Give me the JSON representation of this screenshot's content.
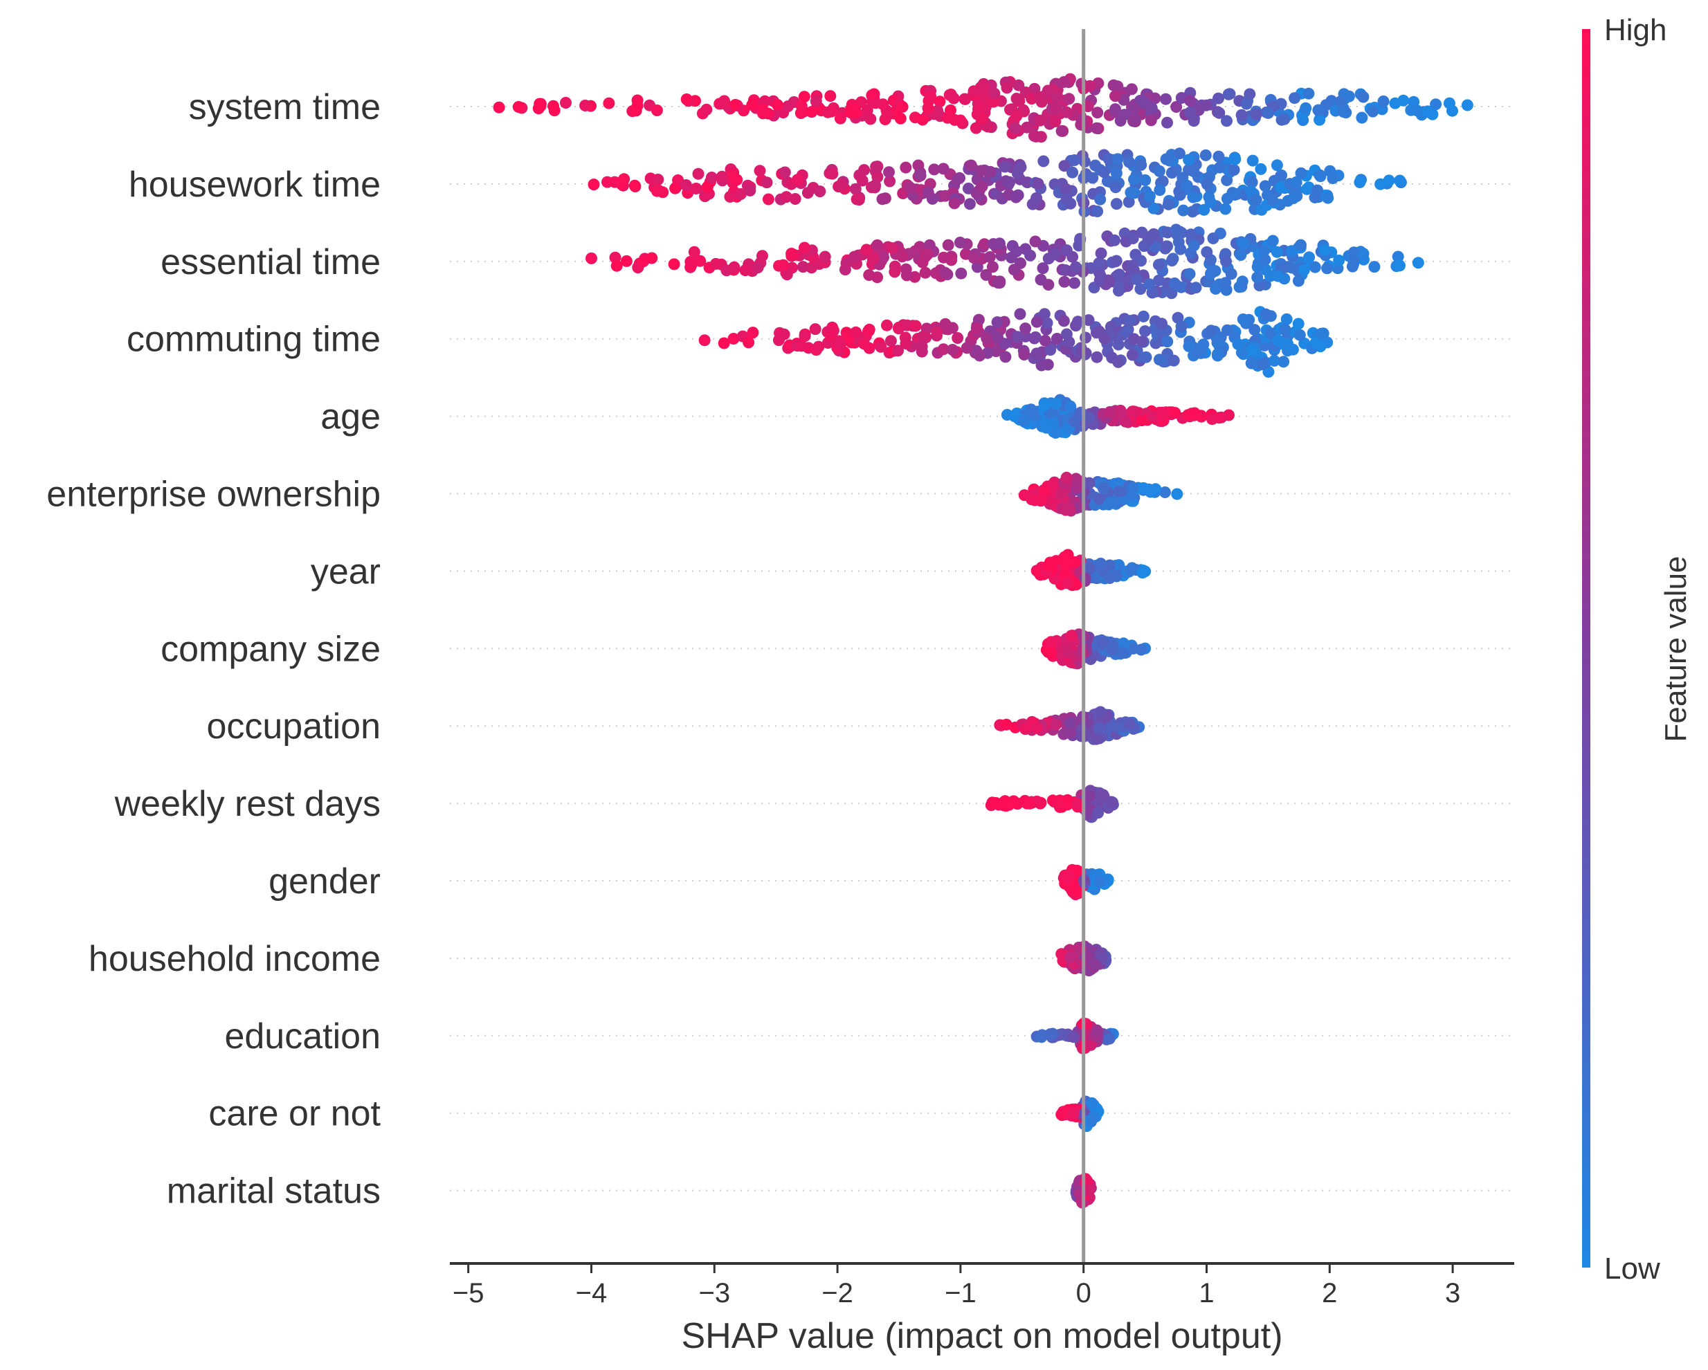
{
  "chart_data": {
    "type": "scatter",
    "subtype": "shap-beeswarm",
    "xlabel": "SHAP value (impact on model output)",
    "xlim": [
      -5.15,
      3.5
    ],
    "xticks": [
      -5,
      -4,
      -3,
      -2,
      -1,
      0,
      1,
      2,
      3
    ],
    "xtick_labels": [
      "−5",
      "−4",
      "−3",
      "−2",
      "−1",
      "0",
      "1",
      "2",
      "3"
    ],
    "zero_line": 0,
    "colorbar": {
      "title": "Feature value",
      "high_label": "High",
      "low_label": "Low",
      "high_color": "#ff0d57",
      "mid_color": "#7f3fa0",
      "low_color": "#1e88e5"
    },
    "features": [
      {
        "name": "system time",
        "min": -4.75,
        "max": 3.12,
        "spread": 1.0,
        "seed": 11,
        "dots": 340,
        "profile": [
          [
            -4.75,
            0.06
          ],
          [
            -3.5,
            0.22
          ],
          [
            -2.5,
            0.3
          ],
          [
            -1.5,
            0.42
          ],
          [
            -0.8,
            0.7
          ],
          [
            -0.2,
            1.0
          ],
          [
            0.5,
            0.5
          ],
          [
            1.5,
            0.42
          ],
          [
            2.5,
            0.38
          ],
          [
            3.12,
            0.15
          ]
        ],
        "colorstops": [
          [
            -4.75,
            1.0
          ],
          [
            -1.0,
            0.9
          ],
          [
            0.0,
            0.7
          ],
          [
            1.0,
            0.4
          ],
          [
            1.8,
            0.08
          ],
          [
            3.12,
            0.0
          ]
        ]
      },
      {
        "name": "housework time",
        "min": -3.98,
        "max": 2.58,
        "spread": 1.0,
        "seed": 23,
        "dots": 340,
        "profile": [
          [
            -3.98,
            0.1
          ],
          [
            -3.0,
            0.45
          ],
          [
            -2.0,
            0.5
          ],
          [
            -1.0,
            0.62
          ],
          [
            0.0,
            0.85
          ],
          [
            0.7,
            0.95
          ],
          [
            1.5,
            0.78
          ],
          [
            2.2,
            0.3
          ],
          [
            2.58,
            0.1
          ]
        ],
        "colorstops": [
          [
            -3.98,
            1.0
          ],
          [
            -2.0,
            0.82
          ],
          [
            -0.5,
            0.45
          ],
          [
            0.5,
            0.15
          ],
          [
            2.58,
            0.0
          ]
        ]
      },
      {
        "name": "essential time",
        "min": -4.0,
        "max": 2.72,
        "spread": 1.0,
        "seed": 37,
        "dots": 340,
        "profile": [
          [
            -4.0,
            0.1
          ],
          [
            -3.0,
            0.35
          ],
          [
            -2.0,
            0.48
          ],
          [
            -1.0,
            0.62
          ],
          [
            0.0,
            0.8
          ],
          [
            0.6,
            1.0
          ],
          [
            1.5,
            0.78
          ],
          [
            2.3,
            0.3
          ],
          [
            2.72,
            0.08
          ]
        ],
        "colorstops": [
          [
            -4.0,
            1.0
          ],
          [
            -2.0,
            0.85
          ],
          [
            -0.5,
            0.55
          ],
          [
            0.5,
            0.3
          ],
          [
            1.5,
            0.1
          ],
          [
            2.72,
            0.0
          ]
        ]
      },
      {
        "name": "commuting time",
        "min": -3.08,
        "max": 1.98,
        "spread": 1.0,
        "seed": 41,
        "dots": 300,
        "profile": [
          [
            -3.08,
            0.1
          ],
          [
            -2.0,
            0.4
          ],
          [
            -1.0,
            0.5
          ],
          [
            -0.4,
            0.85
          ],
          [
            0.0,
            0.6
          ],
          [
            0.5,
            0.8
          ],
          [
            1.0,
            0.5
          ],
          [
            1.5,
            1.0
          ],
          [
            1.98,
            0.15
          ]
        ],
        "colorstops": [
          [
            -3.08,
            1.0
          ],
          [
            -1.5,
            0.9
          ],
          [
            -0.5,
            0.5
          ],
          [
            0.5,
            0.3
          ],
          [
            1.0,
            0.1
          ],
          [
            1.98,
            0.0
          ]
        ]
      },
      {
        "name": "age",
        "min": -0.62,
        "max": 1.18,
        "spread": 0.55,
        "seed": 53,
        "dots": 140,
        "profile": [
          [
            -0.62,
            0.1
          ],
          [
            -0.2,
            1.0
          ],
          [
            0.05,
            0.45
          ],
          [
            0.5,
            0.3
          ],
          [
            1.0,
            0.2
          ],
          [
            1.18,
            0.1
          ]
        ],
        "colorstops": [
          [
            -0.62,
            0.0
          ],
          [
            -0.1,
            0.1
          ],
          [
            0.2,
            0.7
          ],
          [
            0.5,
            0.95
          ],
          [
            1.18,
            1.0
          ]
        ]
      },
      {
        "name": "enterprise ownership",
        "min": -0.48,
        "max": 0.76,
        "spread": 0.55,
        "seed": 67,
        "dots": 130,
        "profile": [
          [
            -0.48,
            0.2
          ],
          [
            -0.1,
            1.0
          ],
          [
            0.05,
            0.7
          ],
          [
            0.4,
            0.5
          ],
          [
            0.76,
            0.1
          ]
        ],
        "colorstops": [
          [
            -0.48,
            1.0
          ],
          [
            -0.1,
            0.75
          ],
          [
            0.1,
            0.2
          ],
          [
            0.76,
            0.0
          ]
        ]
      },
      {
        "name": "year",
        "min": -0.38,
        "max": 0.5,
        "spread": 0.5,
        "seed": 71,
        "dots": 120,
        "profile": [
          [
            -0.38,
            0.2
          ],
          [
            -0.12,
            1.0
          ],
          [
            0.05,
            0.5
          ],
          [
            0.3,
            0.4
          ],
          [
            0.5,
            0.1
          ]
        ],
        "colorstops": [
          [
            -0.38,
            1.0
          ],
          [
            -0.05,
            1.0
          ],
          [
            0.05,
            0.2
          ],
          [
            0.5,
            0.0
          ]
        ]
      },
      {
        "name": "company size",
        "min": -0.3,
        "max": 0.5,
        "spread": 0.5,
        "seed": 83,
        "dots": 110,
        "profile": [
          [
            -0.3,
            0.3
          ],
          [
            -0.08,
            1.0
          ],
          [
            0.1,
            0.55
          ],
          [
            0.3,
            0.35
          ],
          [
            0.5,
            0.1
          ]
        ],
        "colorstops": [
          [
            -0.3,
            1.0
          ],
          [
            -0.05,
            0.8
          ],
          [
            0.1,
            0.25
          ],
          [
            0.5,
            0.05
          ]
        ]
      },
      {
        "name": "occupation",
        "min": -0.68,
        "max": 0.45,
        "spread": 0.5,
        "seed": 97,
        "dots": 110,
        "profile": [
          [
            -0.68,
            0.1
          ],
          [
            -0.3,
            0.35
          ],
          [
            0.0,
            0.7
          ],
          [
            0.1,
            1.0
          ],
          [
            0.3,
            0.4
          ],
          [
            0.45,
            0.1
          ]
        ],
        "colorstops": [
          [
            -0.68,
            1.0
          ],
          [
            -0.3,
            0.8
          ],
          [
            0.0,
            0.45
          ],
          [
            0.45,
            0.2
          ]
        ]
      },
      {
        "name": "weekly rest days",
        "min": -0.75,
        "max": 0.24,
        "spread": 0.5,
        "seed": 101,
        "dots": 110,
        "profile": [
          [
            -0.75,
            0.15
          ],
          [
            -0.3,
            0.2
          ],
          [
            -0.05,
            0.25
          ],
          [
            0.05,
            1.0
          ],
          [
            0.24,
            0.3
          ]
        ],
        "colorstops": [
          [
            -0.75,
            1.0
          ],
          [
            -0.05,
            1.0
          ],
          [
            0.0,
            0.5
          ],
          [
            0.24,
            0.3
          ]
        ]
      },
      {
        "name": "gender",
        "min": -0.16,
        "max": 0.2,
        "spread": 0.45,
        "seed": 113,
        "dots": 90,
        "profile": [
          [
            -0.16,
            0.3
          ],
          [
            -0.05,
            1.0
          ],
          [
            0.0,
            0.4
          ],
          [
            0.1,
            0.6
          ],
          [
            0.2,
            0.1
          ]
        ],
        "colorstops": [
          [
            -0.16,
            1.0
          ],
          [
            -0.02,
            1.0
          ],
          [
            0.02,
            0.1
          ],
          [
            0.2,
            0.0
          ]
        ]
      },
      {
        "name": "household income",
        "min": -0.18,
        "max": 0.18,
        "spread": 0.45,
        "seed": 127,
        "dots": 100,
        "profile": [
          [
            -0.18,
            0.3
          ],
          [
            0.0,
            1.0
          ],
          [
            0.18,
            0.3
          ]
        ],
        "colorstops": [
          [
            -0.18,
            0.9
          ],
          [
            0.0,
            0.65
          ],
          [
            0.18,
            0.4
          ]
        ]
      },
      {
        "name": "education",
        "min": -0.38,
        "max": 0.24,
        "spread": 0.45,
        "seed": 131,
        "dots": 90,
        "profile": [
          [
            -0.38,
            0.1
          ],
          [
            -0.05,
            0.2
          ],
          [
            0.0,
            1.0
          ],
          [
            0.1,
            0.4
          ],
          [
            0.24,
            0.2
          ]
        ],
        "colorstops": [
          [
            -0.38,
            0.2
          ],
          [
            -0.05,
            0.4
          ],
          [
            0.0,
            1.0
          ],
          [
            0.1,
            0.6
          ],
          [
            0.24,
            0.1
          ]
        ]
      },
      {
        "name": "care or not",
        "min": -0.18,
        "max": 0.12,
        "spread": 0.45,
        "seed": 139,
        "dots": 80,
        "profile": [
          [
            -0.18,
            0.2
          ],
          [
            -0.02,
            0.3
          ],
          [
            0.02,
            1.0
          ],
          [
            0.12,
            0.3
          ]
        ],
        "colorstops": [
          [
            -0.18,
            1.0
          ],
          [
            -0.02,
            1.0
          ],
          [
            0.02,
            0.1
          ],
          [
            0.12,
            0.0
          ]
        ]
      },
      {
        "name": "marital status",
        "min": -0.06,
        "max": 0.06,
        "spread": 0.45,
        "seed": 149,
        "dots": 60,
        "profile": [
          [
            -0.06,
            0.4
          ],
          [
            0.0,
            1.0
          ],
          [
            0.06,
            0.4
          ]
        ],
        "colorstops": [
          [
            -0.06,
            0.4
          ],
          [
            0.0,
            0.9
          ],
          [
            0.06,
            0.8
          ]
        ]
      }
    ]
  }
}
